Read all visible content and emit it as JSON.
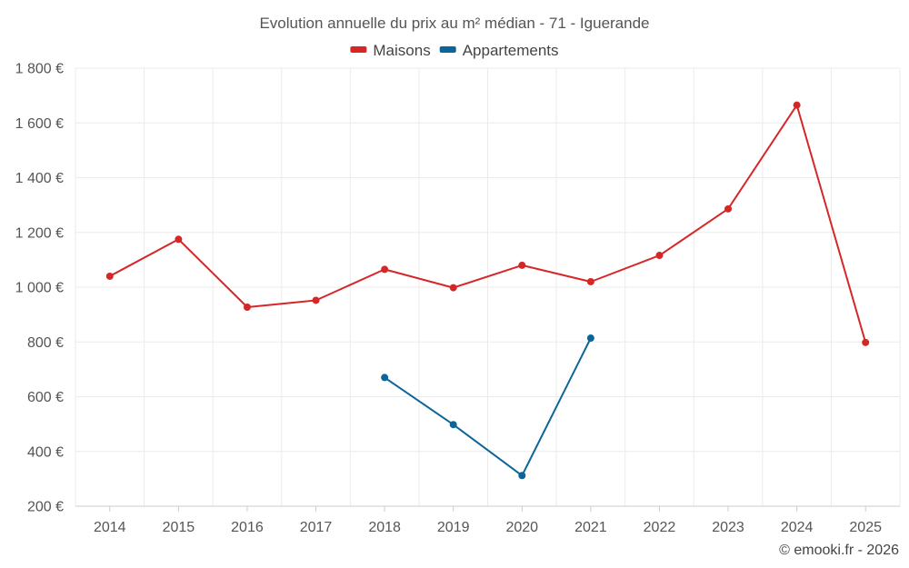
{
  "chart_data": {
    "type": "line",
    "title": "Evolution annuelle du prix au m² médian - 71 - Iguerande",
    "categories": [
      "2014",
      "2015",
      "2016",
      "2017",
      "2018",
      "2019",
      "2020",
      "2021",
      "2022",
      "2023",
      "2024",
      "2025"
    ],
    "series": [
      {
        "name": "Maisons",
        "color": "#d62728",
        "values": [
          1040,
          1175,
          927,
          952,
          1065,
          998,
          1080,
          1020,
          1116,
          1286,
          1665,
          798
        ]
      },
      {
        "name": "Appartements",
        "color": "#0b6599",
        "values": [
          null,
          null,
          null,
          null,
          670,
          498,
          312,
          814,
          null,
          null,
          null,
          null
        ]
      }
    ],
    "yticks": [
      "200 €",
      "400 €",
      "600 €",
      "800 €",
      "1 000 €",
      "1 200 €",
      "1 400 €",
      "1 600 €",
      "1 800 €"
    ],
    "ytick_values": [
      200,
      400,
      600,
      800,
      1000,
      1200,
      1400,
      1600,
      1800
    ],
    "ylim": [
      200,
      1800
    ],
    "xlabel": "",
    "ylabel": "",
    "grid": true,
    "legend_position": "top-center"
  },
  "credit": "© emooki.fr - 2026"
}
